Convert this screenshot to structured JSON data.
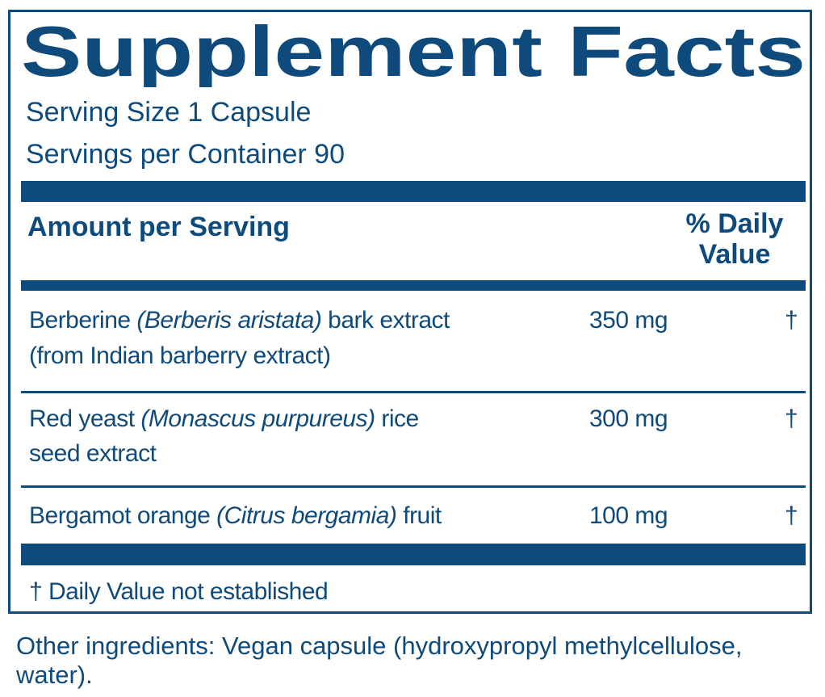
{
  "title": "Supplement Facts",
  "serving_size": "Serving Size 1 Capsule",
  "servings_per_container": "Servings per Container 90",
  "header": {
    "amount": "Amount per Serving",
    "daily_value": "% Daily Value"
  },
  "rows": [
    {
      "name": "Berberine",
      "latin": "(Berberis aristata)",
      "name_rest": "bark extract",
      "line2": "(from Indian barberry extract)",
      "amount": "350 mg",
      "dv": "†"
    },
    {
      "name": "Red yeast",
      "latin": "(Monascus purpureus)",
      "name_rest": "rice",
      "line2": "seed extract",
      "amount": "300 mg",
      "dv": "†"
    },
    {
      "name": "Bergamot orange",
      "latin": "(Citrus bergamia)",
      "name_rest": "fruit",
      "amount": "100 mg",
      "dv": "†"
    }
  ],
  "footnote": "† Daily Value not established",
  "other_ingredients": "Other ingredients: Vegan capsule (hydroxypropyl methylcellulose, water)."
}
